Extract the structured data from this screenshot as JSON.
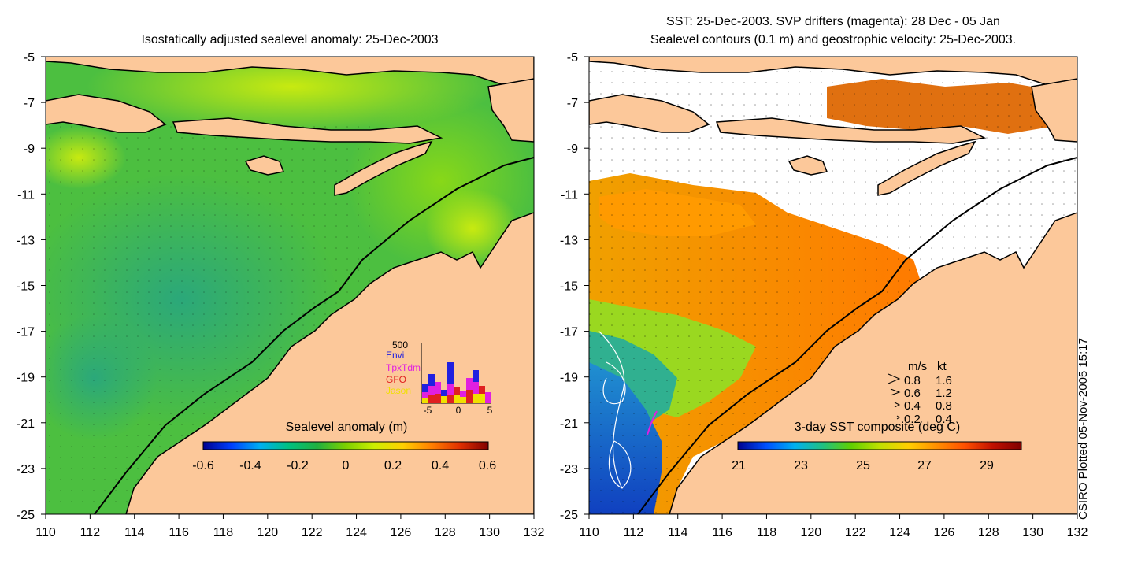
{
  "left_panel": {
    "title": "Isostatically adjusted sealevel anomaly: 25-Dec-2003",
    "colorbar": {
      "label": "Sealevel anomaly (m)",
      "ticks": [
        "-0.6",
        "-0.4",
        "-0.2",
        "0",
        "0.2",
        "0.4",
        "0.6"
      ],
      "colors": [
        "#00008f",
        "#0040ff",
        "#00b0f0",
        "#00c080",
        "#20b040",
        "#7cd000",
        "#ccee00",
        "#ffd000",
        "#ff8000",
        "#e03000",
        "#800000"
      ]
    },
    "inset": {
      "ymax_label": "500",
      "legend": [
        {
          "name": "Envi",
          "color": "#2020e0"
        },
        {
          "name": "TpxTdm",
          "color": "#e020e0"
        },
        {
          "name": "GFO",
          "color": "#e02020"
        },
        {
          "name": "Jason",
          "color": "#f0e000"
        }
      ],
      "xticks": [
        "-5",
        "0",
        "5"
      ]
    }
  },
  "right_panel": {
    "title_line1": "SST: 25-Dec-2003. SVP drifters (magenta): 28 Dec - 05 Jan",
    "title_line2": "Sealevel contours (0.1 m) and geostrophic velocity: 25-Dec-2003.",
    "colorbar": {
      "label": "3-day SST composite (deg C)",
      "ticks": [
        "21",
        "23",
        "25",
        "27",
        "29"
      ],
      "colors": [
        "#00008f",
        "#0050ff",
        "#00b0f0",
        "#20c080",
        "#60d000",
        "#c0e000",
        "#ffd000",
        "#ff9000",
        "#ff5000",
        "#c01000",
        "#800000"
      ]
    },
    "velocity_legend": {
      "header_ms": "m/s",
      "header_kt": "kt",
      "rows": [
        {
          "ms": "0.8",
          "kt": "1.6"
        },
        {
          "ms": "0.6",
          "kt": "1.2"
        },
        {
          "ms": "0.4",
          "kt": "0.8"
        },
        {
          "ms": "0.2",
          "kt": "0.4"
        }
      ]
    }
  },
  "axes": {
    "lon_ticks": [
      "110",
      "112",
      "114",
      "116",
      "118",
      "120",
      "122",
      "124",
      "126",
      "128",
      "130",
      "132"
    ],
    "lat_ticks": [
      "-5",
      "-7",
      "-9",
      "-11",
      "-13",
      "-15",
      "-17",
      "-19",
      "-21",
      "-23",
      "-25"
    ]
  },
  "credit": "CSIRO Plotted 05-Nov-2005 15:17",
  "colors": {
    "land": "#fcc89a",
    "sea_base": "#4cbf40",
    "white_mask": "#ffffff"
  }
}
